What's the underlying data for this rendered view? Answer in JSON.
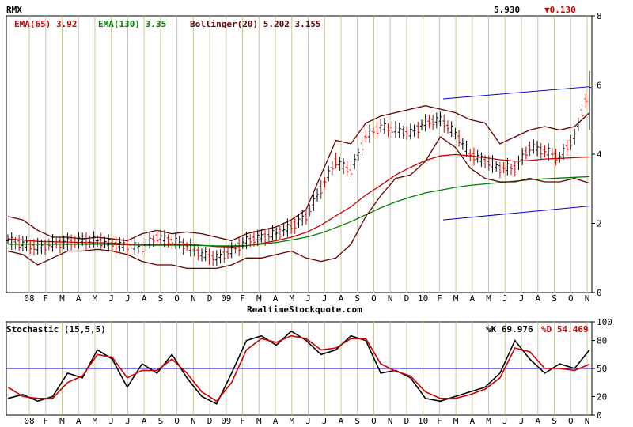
{
  "symbol": "RMX",
  "last_price": "5.930",
  "change": "▼0.130",
  "indicators": {
    "ema65": "EMA(65) 3.92",
    "ema130": "EMA(130) 3.35",
    "bollinger": "Bollinger(20) 5.202 3.155"
  },
  "watermark": "RealtimeStockquote.com",
  "stochastic": {
    "title": "Stochastic (15,5,5)",
    "k_label": "%K 69.976",
    "d_label": "%D 54.469"
  },
  "colors": {
    "grid": "#c8c896",
    "ema65": "#cc0000",
    "ema130": "#008000",
    "bollinger": "#660000",
    "trend": "#0000cc",
    "ref": "#0000cc",
    "up_bar": "#000000",
    "down_bar": "#cc0000"
  },
  "chart_data": [
    {
      "type": "line",
      "name": "price",
      "x_ticks": [
        "08",
        "F",
        "M",
        "A",
        "M",
        "J",
        "J",
        "A",
        "S",
        "O",
        "N",
        "D",
        "09",
        "F",
        "M",
        "A",
        "M",
        "J",
        "J",
        "A",
        "S",
        "O",
        "N",
        "D",
        "10",
        "F",
        "M",
        "A",
        "M",
        "J",
        "J",
        "A",
        "S",
        "O",
        "N"
      ],
      "y_ticks": [
        0,
        2,
        4,
        6,
        8
      ],
      "ylim": [
        0,
        8
      ],
      "close": [
        1.5,
        1.4,
        1.3,
        1.4,
        1.45,
        1.5,
        1.5,
        1.4,
        1.35,
        1.3,
        1.6,
        1.5,
        1.35,
        1.1,
        1.0,
        1.2,
        1.5,
        1.6,
        1.7,
        1.9,
        2.2,
        3.0,
        3.8,
        3.5,
        4.5,
        4.8,
        4.7,
        4.6,
        4.9,
        5.0,
        4.6,
        4.0,
        3.8,
        3.6,
        3.6,
        4.2,
        4.1,
        3.9,
        4.5,
        5.93
      ],
      "series": [
        {
          "name": "EMA(65)",
          "values": [
            1.55,
            1.52,
            1.48,
            1.47,
            1.46,
            1.45,
            1.44,
            1.43,
            1.4,
            1.38,
            1.38,
            1.4,
            1.4,
            1.37,
            1.33,
            1.32,
            1.35,
            1.42,
            1.5,
            1.6,
            1.74,
            1.95,
            2.22,
            2.48,
            2.82,
            3.1,
            3.4,
            3.62,
            3.82,
            3.95,
            3.99,
            3.95,
            3.9,
            3.84,
            3.8,
            3.82,
            3.86,
            3.88,
            3.9,
            3.92
          ]
        },
        {
          "name": "EMA(130)",
          "values": [
            1.4,
            1.4,
            1.4,
            1.4,
            1.4,
            1.4,
            1.4,
            1.39,
            1.38,
            1.37,
            1.37,
            1.37,
            1.37,
            1.36,
            1.35,
            1.35,
            1.36,
            1.4,
            1.45,
            1.52,
            1.6,
            1.72,
            1.88,
            2.05,
            2.25,
            2.45,
            2.62,
            2.76,
            2.88,
            2.96,
            3.04,
            3.1,
            3.14,
            3.18,
            3.22,
            3.26,
            3.29,
            3.31,
            3.33,
            3.35
          ]
        },
        {
          "name": "Bollinger upper",
          "values": [
            2.2,
            2.1,
            1.8,
            1.6,
            1.6,
            1.55,
            1.6,
            1.55,
            1.5,
            1.7,
            1.8,
            1.7,
            1.75,
            1.7,
            1.6,
            1.5,
            1.7,
            1.8,
            1.9,
            2.1,
            2.4,
            3.4,
            4.4,
            4.3,
            4.9,
            5.1,
            5.2,
            5.3,
            5.4,
            5.3,
            5.2,
            5.0,
            4.9,
            4.3,
            4.5,
            4.7,
            4.8,
            4.7,
            4.8,
            5.2
          ]
        },
        {
          "name": "Bollinger lower",
          "values": [
            1.2,
            1.1,
            0.8,
            1.0,
            1.2,
            1.2,
            1.25,
            1.2,
            1.1,
            0.9,
            0.8,
            0.8,
            0.7,
            0.7,
            0.7,
            0.8,
            1.0,
            1.0,
            1.1,
            1.2,
            1.0,
            0.9,
            1.0,
            1.4,
            2.2,
            2.8,
            3.3,
            3.4,
            3.8,
            4.5,
            4.2,
            3.6,
            3.3,
            3.2,
            3.2,
            3.3,
            3.2,
            3.2,
            3.3,
            3.16
          ]
        }
      ],
      "trend_channel": [
        {
          "name": "upper trend",
          "from": [
            "M 10",
            5.6
          ],
          "to": [
            "N end",
            5.95
          ]
        },
        {
          "name": "lower trend",
          "from": [
            "M 10",
            2.1
          ],
          "to": [
            "N end",
            2.5
          ]
        }
      ]
    },
    {
      "type": "line",
      "name": "Stochastic (15,5,5)",
      "y_ticks": [
        0,
        20,
        50,
        80,
        100
      ],
      "ylim": [
        0,
        100
      ],
      "reference_line": 50,
      "series": [
        {
          "name": "%K",
          "values": [
            18,
            22,
            15,
            20,
            45,
            40,
            70,
            60,
            30,
            55,
            45,
            65,
            40,
            20,
            12,
            45,
            80,
            85,
            75,
            90,
            80,
            65,
            70,
            85,
            80,
            45,
            48,
            40,
            18,
            15,
            20,
            25,
            30,
            45,
            80,
            60,
            45,
            55,
            50,
            69.976
          ]
        },
        {
          "name": "%D",
          "values": [
            30,
            20,
            18,
            18,
            35,
            42,
            65,
            62,
            40,
            48,
            48,
            60,
            45,
            25,
            15,
            35,
            70,
            82,
            78,
            85,
            82,
            70,
            72,
            82,
            82,
            55,
            47,
            42,
            25,
            18,
            18,
            22,
            28,
            40,
            72,
            68,
            50,
            50,
            48,
            54.469
          ]
        }
      ]
    }
  ]
}
